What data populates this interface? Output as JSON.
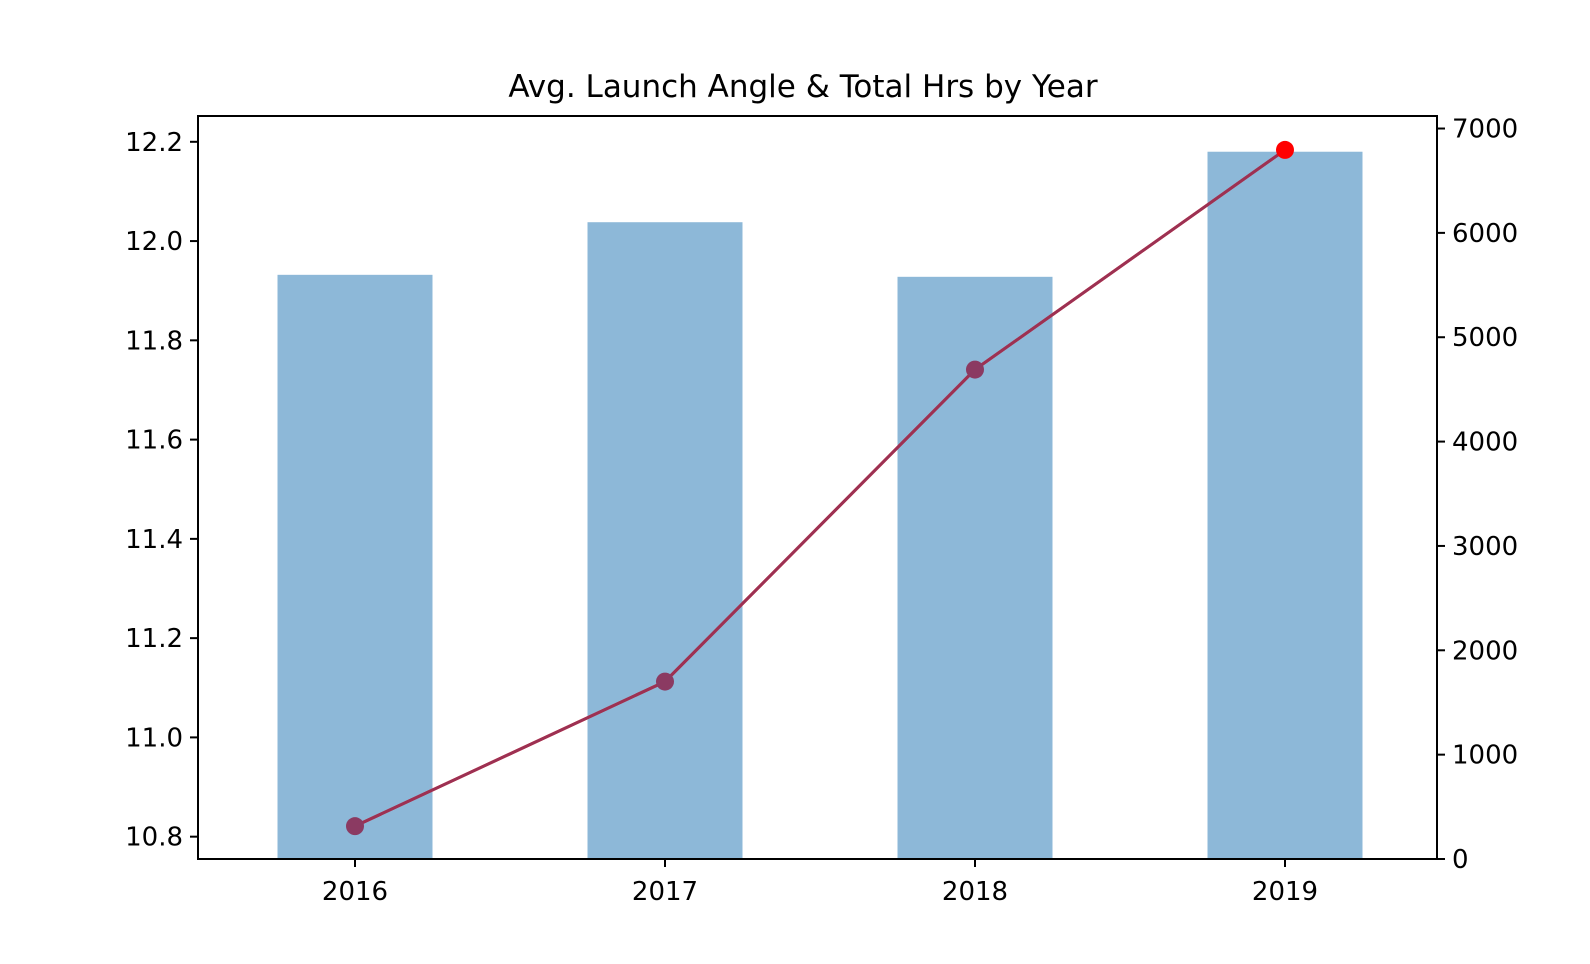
{
  "chart_data": {
    "type": "bar",
    "title": "Avg. Launch Angle & Total Hrs by Year",
    "categories": [
      "2016",
      "2017",
      "2018",
      "2019"
    ],
    "series": [
      {
        "axis": "left",
        "type": "bar",
        "color": "#8db8d8",
        "values": [
          11.932,
          12.038,
          11.928,
          12.18
        ]
      },
      {
        "axis": "right",
        "type": "line",
        "line_color": "#ff0000",
        "marker_color": "#8b3a62",
        "last_marker_color": "#ff0000",
        "values": [
          315,
          1700,
          4690,
          6795
        ]
      }
    ],
    "left_axis": {
      "ylim": [
        10.755,
        12.252
      ],
      "ticks": [
        10.8,
        11.0,
        11.2,
        11.4,
        11.6,
        11.8,
        12.0,
        12.2
      ],
      "tick_labels": [
        "10.8",
        "11.0",
        "11.2",
        "11.4",
        "11.6",
        "11.8",
        "12.0",
        "12.2"
      ]
    },
    "right_axis": {
      "ylim": [
        0,
        7120
      ],
      "ticks": [
        0,
        1000,
        2000,
        3000,
        4000,
        5000,
        6000,
        7000
      ],
      "tick_labels": [
        "0",
        "1000",
        "2000",
        "3000",
        "4000",
        "5000",
        "6000",
        "7000"
      ]
    },
    "xlabel": "",
    "ylabel": "",
    "grid": false,
    "legend": "none"
  }
}
